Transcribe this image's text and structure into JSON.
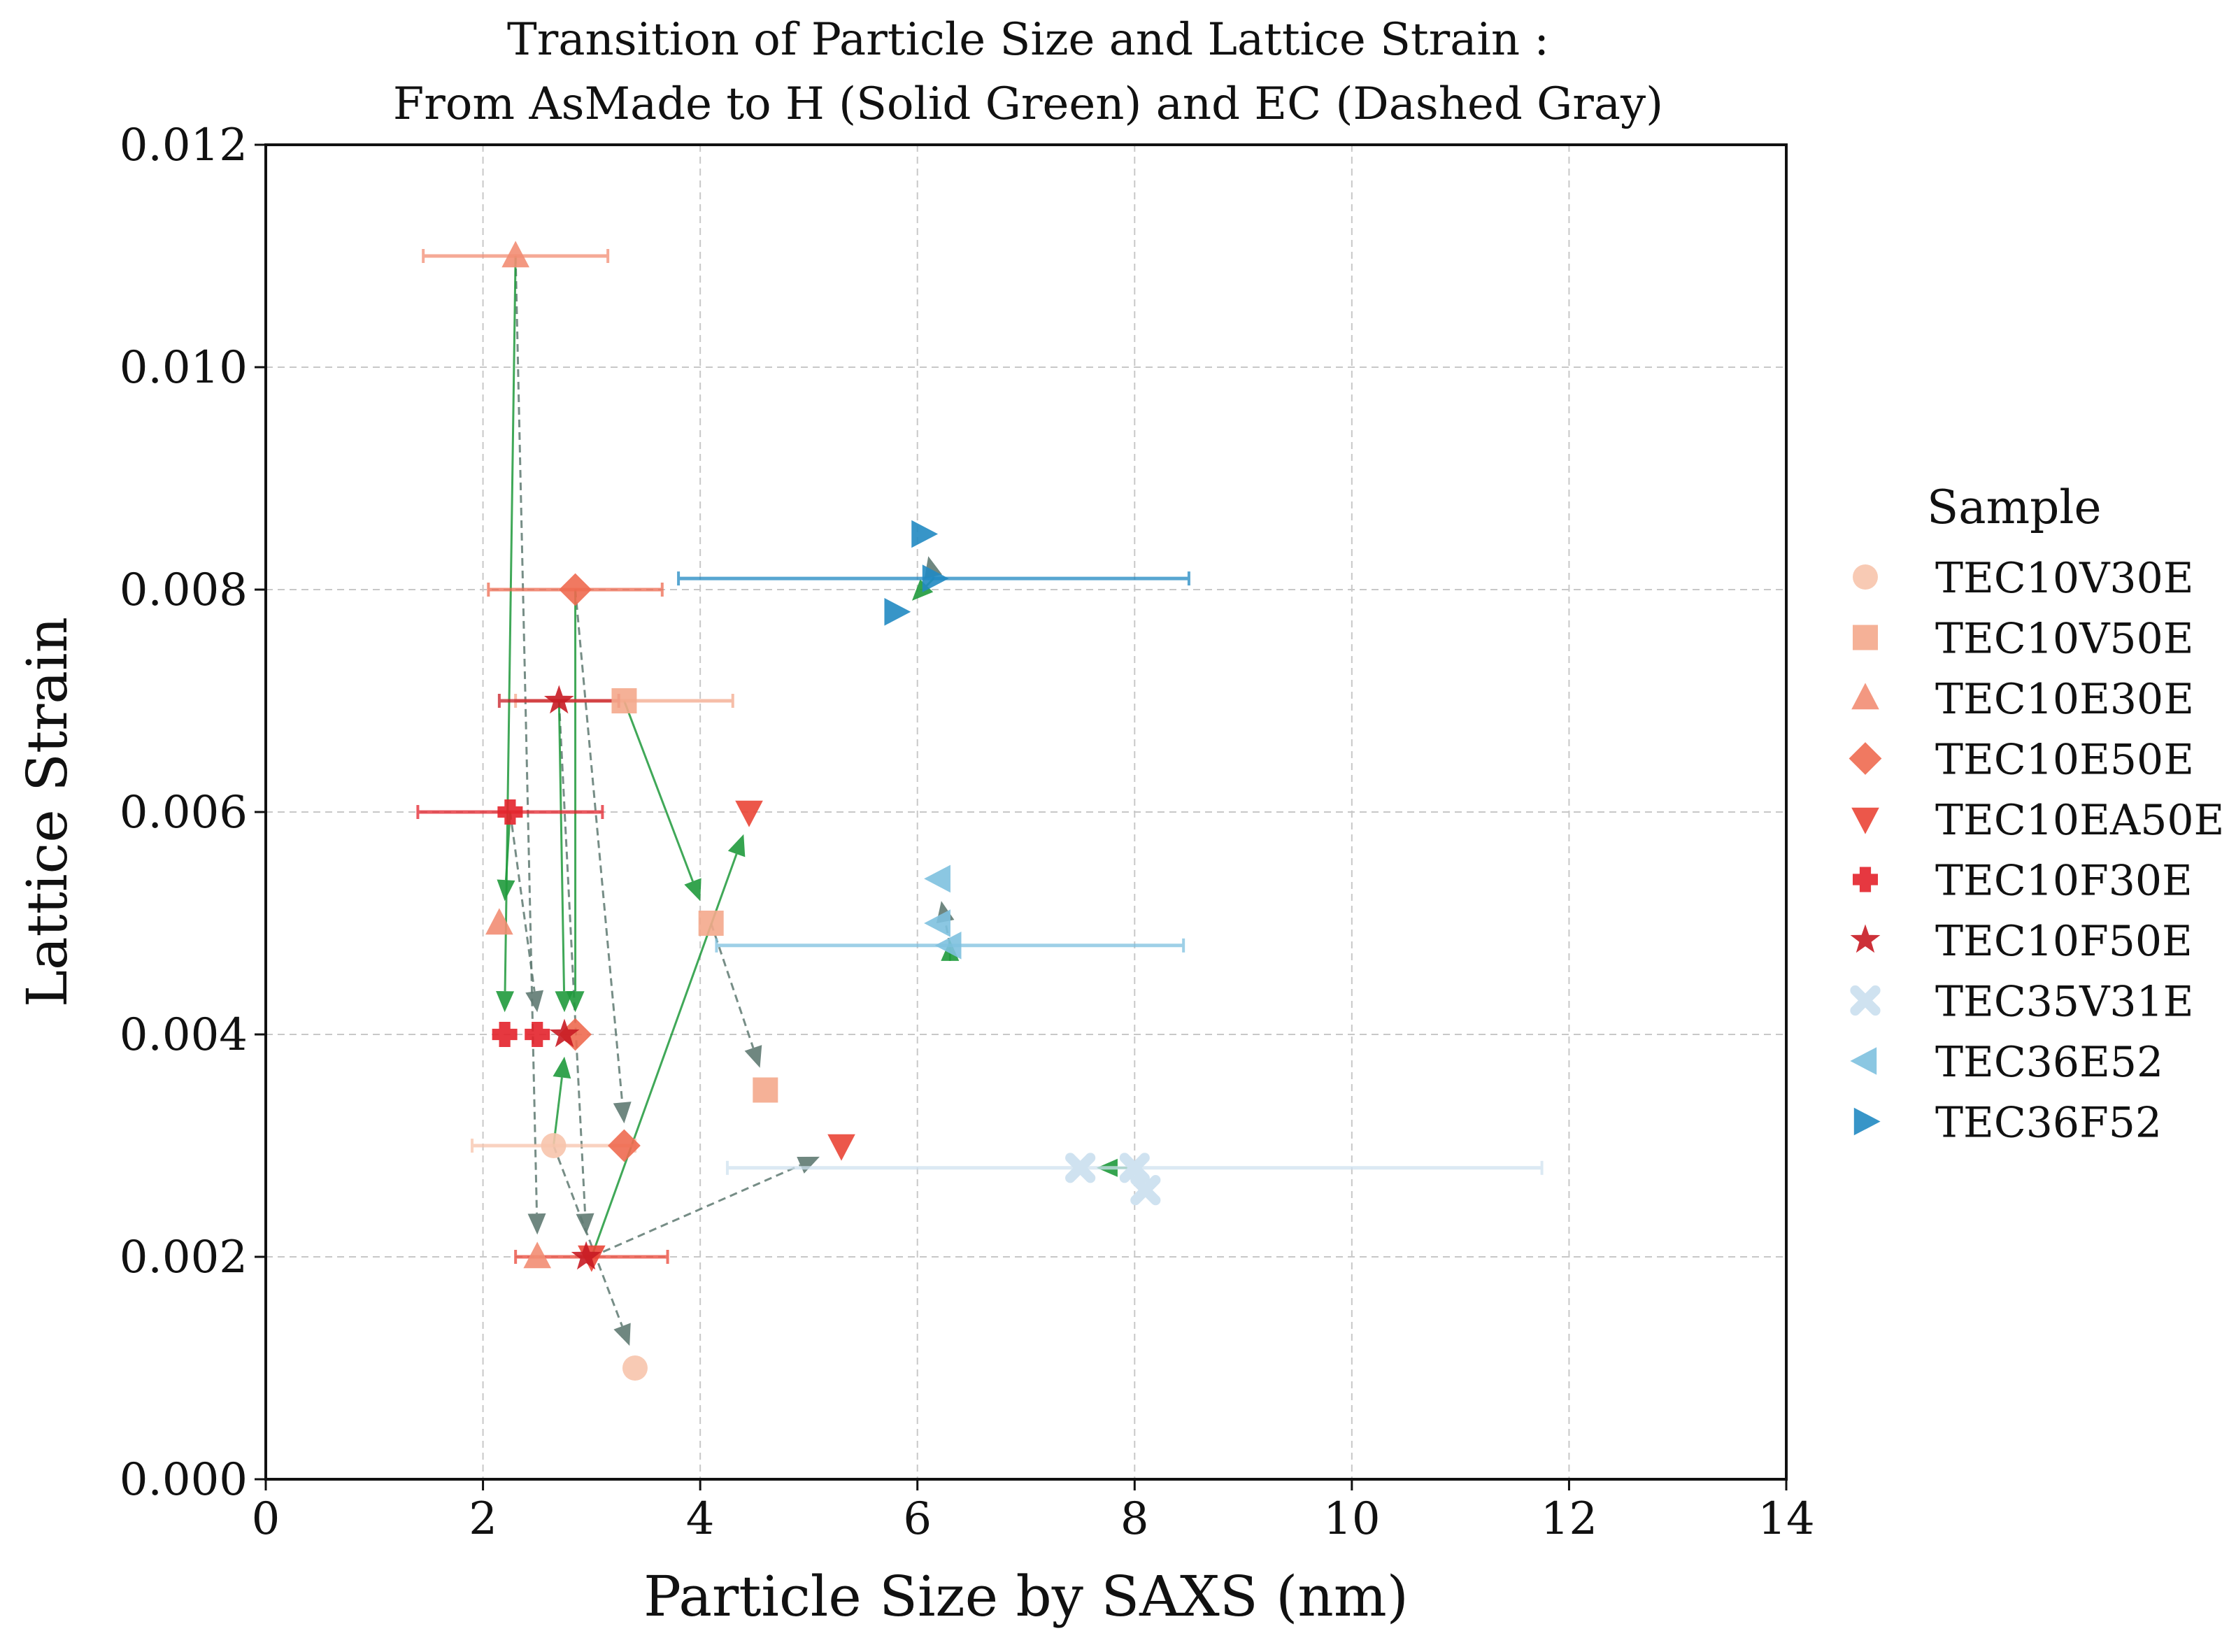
{
  "chart_data": {
    "type": "scatter",
    "title": "Transition of Particle Size and Lattice Strain :",
    "subtitle": "From AsMade to H (Solid Green) and EC (Dashed Gray)",
    "xlabel": "Particle Size by SAXS (nm)",
    "ylabel": "Lattice Strain",
    "xlim": [
      0,
      14
    ],
    "ylim": [
      0,
      0.012
    ],
    "x_ticks": [
      0,
      2,
      4,
      6,
      8,
      10,
      12,
      14
    ],
    "x_tick_labels": [
      "0",
      "2",
      "4",
      "6",
      "8",
      "10",
      "12",
      "14"
    ],
    "y_ticks": [
      0,
      0.002,
      0.004,
      0.006,
      0.008,
      0.01,
      0.012
    ],
    "y_tick_labels": [
      "0.000",
      "0.002",
      "0.004",
      "0.006",
      "0.008",
      "0.010",
      "0.012"
    ],
    "grid": true,
    "legend_title": "Sample",
    "legend_position": "right, outside",
    "series": [
      {
        "name": "TEC10V30E",
        "marker": "circle",
        "color": "#f7c4ac",
        "points": [
          {
            "x": 2.65,
            "y": 0.003,
            "xerr": 0.75
          },
          {
            "x": 3.4,
            "y": 0.001
          }
        ]
      },
      {
        "name": "TEC10V50E",
        "marker": "square",
        "color": "#f4a98c",
        "points": [
          {
            "x": 3.3,
            "y": 0.007,
            "xerr": 1.0
          },
          {
            "x": 4.1,
            "y": 0.005
          },
          {
            "x": 4.6,
            "y": 0.0035
          }
        ]
      },
      {
        "name": "TEC10E30E",
        "marker": "triangle-up",
        "color": "#f28d73",
        "points": [
          {
            "x": 2.3,
            "y": 0.011,
            "xerr": 0.85
          },
          {
            "x": 2.15,
            "y": 0.005
          },
          {
            "x": 2.5,
            "y": 0.002
          }
        ]
      },
      {
        "name": "TEC10E50E",
        "marker": "diamond",
        "color": "#ee6a50",
        "points": [
          {
            "x": 2.85,
            "y": 0.008,
            "xerr": 0.8
          },
          {
            "x": 2.85,
            "y": 0.004
          },
          {
            "x": 3.3,
            "y": 0.003
          }
        ]
      },
      {
        "name": "TEC10EA50E",
        "marker": "triangle-down",
        "color": "#ea4536",
        "points": [
          {
            "x": 3.0,
            "y": 0.002,
            "xerr": 0.7
          },
          {
            "x": 4.45,
            "y": 0.006
          },
          {
            "x": 5.3,
            "y": 0.003
          }
        ]
      },
      {
        "name": "TEC10F30E",
        "marker": "plus",
        "color": "#e3222b",
        "points": [
          {
            "x": 2.25,
            "y": 0.006,
            "xerr": 0.85
          },
          {
            "x": 2.2,
            "y": 0.004
          },
          {
            "x": 2.5,
            "y": 0.004
          }
        ]
      },
      {
        "name": "TEC10F50E",
        "marker": "star",
        "color": "#c81b24",
        "points": [
          {
            "x": 2.7,
            "y": 0.007,
            "xerr": 0.55
          },
          {
            "x": 2.75,
            "y": 0.004
          },
          {
            "x": 2.95,
            "y": 0.002
          }
        ]
      },
      {
        "name": "TEC35V31E",
        "marker": "x-thick",
        "color": "#cfe2f0",
        "points": [
          {
            "x": 8.0,
            "y": 0.0028,
            "xerr": 3.75
          },
          {
            "x": 7.5,
            "y": 0.0028
          },
          {
            "x": 8.1,
            "y": 0.0026
          }
        ]
      },
      {
        "name": "TEC36E52",
        "marker": "triangle-left",
        "color": "#7ec1df",
        "points": [
          {
            "x": 6.3,
            "y": 0.0048,
            "xerr": 2.15
          },
          {
            "x": 6.2,
            "y": 0.0054
          },
          {
            "x": 6.2,
            "y": 0.005
          }
        ]
      },
      {
        "name": "TEC36F52",
        "marker": "triangle-right",
        "color": "#2189c2",
        "points": [
          {
            "x": 6.15,
            "y": 0.0081,
            "xerr": 2.35
          },
          {
            "x": 5.8,
            "y": 0.0078
          },
          {
            "x": 6.05,
            "y": 0.0085
          }
        ]
      }
    ],
    "transitions_h": [
      {
        "sample": "TEC10V50E",
        "from": [
          3.3,
          0.007
        ],
        "to": [
          4.0,
          0.0052
        ]
      },
      {
        "sample": "TEC10E30E",
        "from": [
          2.3,
          0.011
        ],
        "to": [
          2.2,
          0.0042
        ]
      },
      {
        "sample": "TEC10E50E",
        "from": [
          2.85,
          0.008
        ],
        "to": [
          2.85,
          0.0042
        ]
      },
      {
        "sample": "TEC10EA50E",
        "from": [
          3.0,
          0.002
        ],
        "to": [
          4.4,
          0.0058
        ]
      },
      {
        "sample": "TEC10F30E",
        "from": [
          2.25,
          0.006
        ],
        "to": [
          2.2,
          0.0052
        ]
      },
      {
        "sample": "TEC10F50E",
        "from": [
          2.7,
          0.007
        ],
        "to": [
          2.75,
          0.0042
        ]
      },
      {
        "sample": "TEC10V30E",
        "from": [
          2.65,
          0.003
        ],
        "to": [
          2.75,
          0.0038
        ]
      },
      {
        "sample": "TEC35V31E",
        "from": [
          8.0,
          0.0028
        ],
        "to": [
          7.65,
          0.0028
        ]
      },
      {
        "sample": "TEC36E52",
        "from": [
          6.3,
          0.0048
        ],
        "to": [
          6.3,
          0.00485
        ]
      },
      {
        "sample": "TEC36F52",
        "from": [
          6.15,
          0.0081
        ],
        "to": [
          5.95,
          0.0079
        ]
      }
    ],
    "transitions_ec": [
      {
        "sample": "TEC10V30E",
        "from": [
          2.65,
          0.003
        ],
        "to": [
          3.35,
          0.0012
        ]
      },
      {
        "sample": "TEC10V50E",
        "from": [
          4.1,
          0.005
        ],
        "to": [
          4.55,
          0.0037
        ]
      },
      {
        "sample": "TEC10E30E",
        "from": [
          2.3,
          0.011
        ],
        "to": [
          2.5,
          0.0022
        ]
      },
      {
        "sample": "TEC10E50E",
        "from": [
          2.85,
          0.008
        ],
        "to": [
          3.3,
          0.0032
        ]
      },
      {
        "sample": "TEC10EA50E",
        "from": [
          3.0,
          0.002
        ],
        "to": [
          5.1,
          0.0029
        ]
      },
      {
        "sample": "TEC10F30E",
        "from": [
          2.25,
          0.006
        ],
        "to": [
          2.5,
          0.0042
        ]
      },
      {
        "sample": "TEC10F50E",
        "from": [
          2.7,
          0.007
        ],
        "to": [
          2.95,
          0.0022
        ]
      },
      {
        "sample": "TEC35V31E",
        "from": [
          8.0,
          0.0028
        ],
        "to": [
          8.0,
          0.0028
        ]
      },
      {
        "sample": "TEC36E52",
        "from": [
          6.3,
          0.0048
        ],
        "to": [
          6.22,
          0.0052
        ]
      },
      {
        "sample": "TEC36F52",
        "from": [
          6.15,
          0.0081
        ],
        "to": [
          6.1,
          0.0083
        ]
      }
    ]
  }
}
